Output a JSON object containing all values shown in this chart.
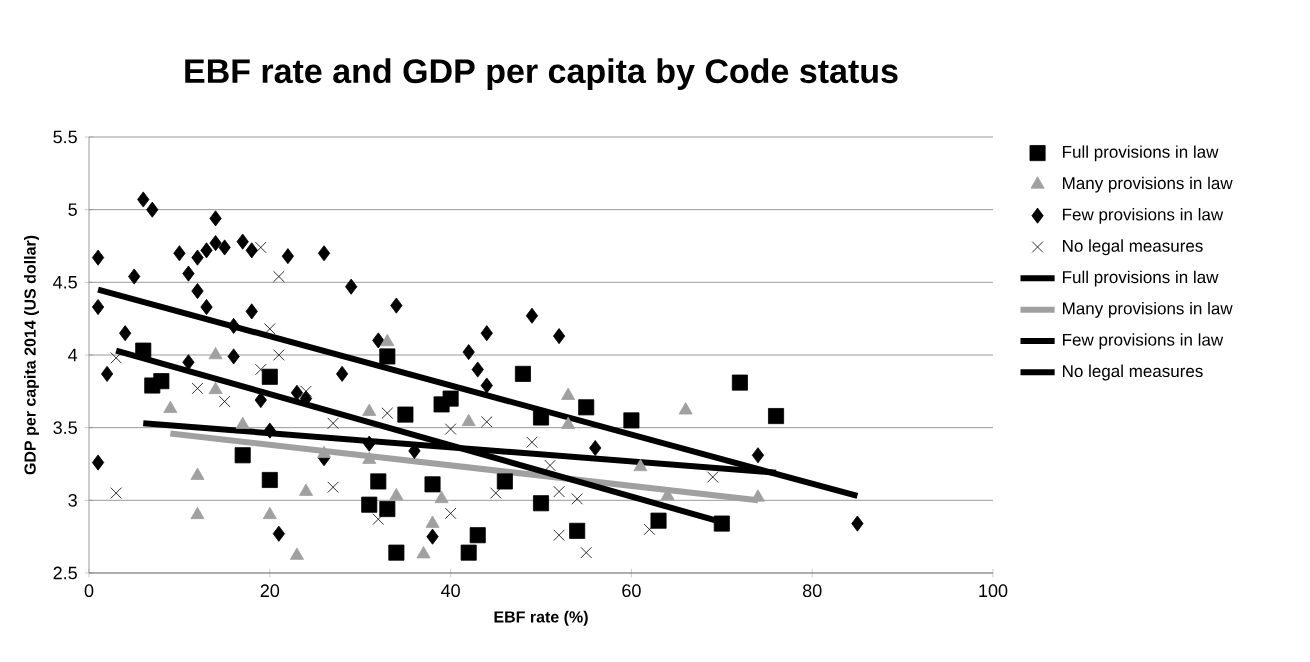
{
  "chart_data": {
    "type": "scatter",
    "title": "EBF rate and GDP per capita by Code status",
    "xlabel": "EBF rate (%)",
    "ylabel": "GDP per capita 2014 (US dollar)",
    "xlim": [
      0,
      100
    ],
    "xticks": [
      0,
      20,
      40,
      60,
      80,
      100
    ],
    "ylim": [
      2.5,
      5.5
    ],
    "yticks": [
      2.5,
      3,
      3.5,
      4,
      4.5,
      5,
      5.5
    ],
    "grid": "y",
    "legend": "right",
    "series": [
      {
        "name": "Full provisions in law",
        "marker": "square",
        "color": "#000000",
        "x": [
          6,
          7,
          8,
          17,
          20,
          20,
          33,
          35,
          39,
          40,
          32,
          31,
          33,
          38,
          34,
          42,
          43,
          46,
          48,
          50,
          55,
          60,
          50,
          54,
          63,
          72,
          76,
          70
        ],
        "values": [
          4.03,
          3.79,
          3.82,
          3.31,
          3.85,
          3.14,
          3.99,
          3.59,
          3.66,
          3.7,
          3.13,
          2.97,
          2.94,
          3.11,
          2.64,
          2.64,
          2.76,
          3.13,
          3.87,
          3.57,
          3.64,
          3.55,
          2.98,
          2.79,
          2.86,
          3.81,
          3.58,
          2.84
        ]
      },
      {
        "name": "Many provisions in law",
        "marker": "triangle",
        "color": "#a0a0a0",
        "x": [
          14,
          9,
          12,
          12,
          14,
          17,
          24,
          20,
          23,
          26,
          33,
          31,
          31,
          34,
          42,
          39,
          38,
          37,
          53,
          53,
          66,
          61,
          64,
          74
        ],
        "values": [
          4.0,
          3.63,
          3.17,
          2.9,
          3.76,
          3.52,
          3.06,
          2.9,
          2.62,
          3.32,
          4.09,
          3.61,
          3.28,
          3.03,
          3.54,
          3.01,
          2.84,
          2.63,
          3.72,
          3.52,
          3.62,
          3.23,
          3.03,
          3.02
        ]
      },
      {
        "name": "Few provisions in law",
        "marker": "diamond",
        "color": "#000000",
        "x": [
          1,
          6,
          7,
          5,
          1,
          4,
          2,
          1,
          10,
          11,
          12,
          13,
          14,
          14,
          15,
          17,
          18,
          12,
          13,
          16,
          16,
          18,
          19,
          20,
          22,
          23,
          24,
          26,
          26,
          28,
          29,
          21,
          11,
          34,
          32,
          44,
          42,
          49,
          52,
          43,
          44,
          31,
          36,
          56,
          38,
          74,
          85
        ],
        "values": [
          4.67,
          5.07,
          5.0,
          4.54,
          4.33,
          4.15,
          3.87,
          3.26,
          4.7,
          4.56,
          4.67,
          4.72,
          4.94,
          4.77,
          4.74,
          4.78,
          4.72,
          4.44,
          4.33,
          4.2,
          3.99,
          4.3,
          3.69,
          3.48,
          4.68,
          3.74,
          3.7,
          4.7,
          3.29,
          3.87,
          4.47,
          2.77,
          3.95,
          4.34,
          4.1,
          4.15,
          4.02,
          4.27,
          4.13,
          3.9,
          3.79,
          3.39,
          3.34,
          3.36,
          2.75,
          3.31,
          2.84
        ]
      },
      {
        "name": "No legal measures",
        "marker": "cross",
        "color": "#000000",
        "x": [
          3,
          3,
          12,
          15,
          19,
          19,
          21,
          20,
          21,
          24,
          27,
          27,
          33,
          40,
          44,
          49,
          51,
          52,
          54,
          45,
          40,
          32,
          52,
          55,
          62,
          69
        ],
        "values": [
          3.05,
          3.98,
          3.77,
          3.68,
          3.9,
          4.74,
          4.54,
          4.18,
          4.0,
          3.75,
          3.09,
          3.53,
          3.6,
          3.49,
          3.54,
          3.4,
          3.24,
          3.06,
          3.01,
          3.05,
          2.91,
          2.87,
          2.76,
          2.64,
          2.8,
          3.16
        ]
      },
      {
        "name": "Full provisions in law",
        "type": "line",
        "marker": "none",
        "line_style": "solid",
        "color": "#000000",
        "x": [
          6,
          76
        ],
        "values": [
          3.53,
          3.19
        ]
      },
      {
        "name": "Many provisions in law",
        "type": "line",
        "marker": "none",
        "line_style": "solid",
        "color": "#a0a0a0",
        "x": [
          9,
          74
        ],
        "values": [
          3.46,
          3.0
        ]
      },
      {
        "name": "Few provisions in law",
        "type": "line",
        "marker": "none",
        "line_style": "solid",
        "color": "#000000",
        "x": [
          1,
          85
        ],
        "values": [
          4.45,
          3.03
        ]
      },
      {
        "name": "No legal measures",
        "type": "line",
        "marker": "none",
        "line_style": "solid",
        "color": "#000000",
        "x": [
          3,
          70
        ],
        "values": [
          4.03,
          2.85
        ]
      }
    ]
  }
}
